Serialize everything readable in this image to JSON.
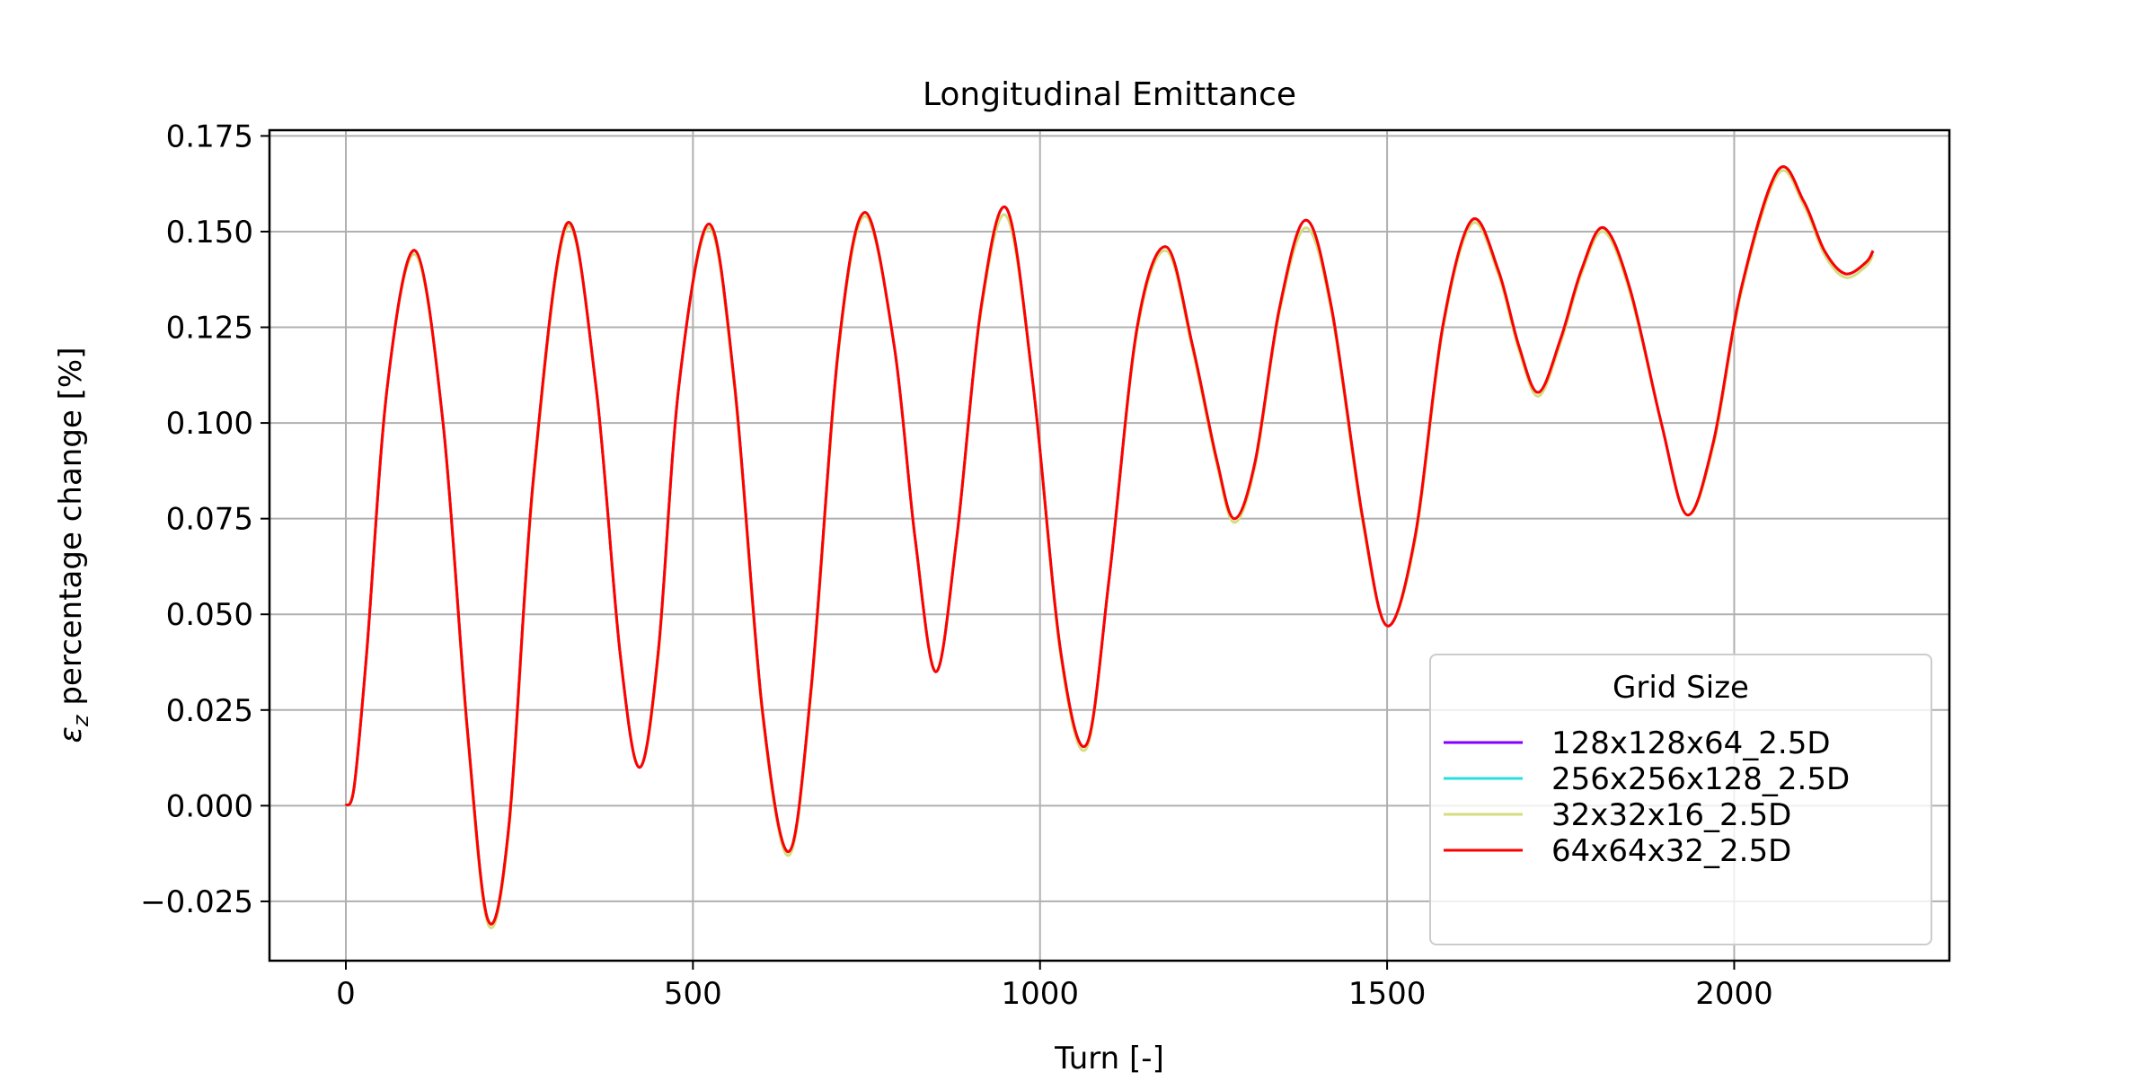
{
  "chart_data": {
    "type": "line",
    "title": "Longitudinal Emittance",
    "xlabel": "Turn [-]",
    "ylabel_symbol": "ε",
    "ylabel_subscript": "z",
    "ylabel_rest": " percentage change [%]",
    "xlim": [
      -110,
      2310
    ],
    "ylim": [
      -0.0405,
      0.1765
    ],
    "xticks": [
      0,
      500,
      1000,
      1500,
      2000
    ],
    "xtick_labels": [
      "0",
      "500",
      "1000",
      "1500",
      "2000"
    ],
    "yticks": [
      -0.025,
      0.0,
      0.025,
      0.05,
      0.075,
      0.1,
      0.125,
      0.15,
      0.175
    ],
    "ytick_labels": [
      "−0.025",
      "0.000",
      "0.025",
      "0.050",
      "0.075",
      "0.100",
      "0.125",
      "0.150",
      "0.175"
    ],
    "grid": true,
    "legend": {
      "title": "Grid Size",
      "placement": "lower-right",
      "entries": [
        "128x128x64_2.5D",
        "256x256x128_2.5D",
        "32x32x16_2.5D",
        "64x64x32_2.5D"
      ]
    },
    "series": [
      {
        "name": "128x128x64_2.5D",
        "color": "#8000ff",
        "x": [
          0,
          12,
          30,
          60,
          100,
          140,
          175,
          205,
          235,
          270,
          318,
          360,
          395,
          423,
          450,
          480,
          523,
          560,
          600,
          638,
          670,
          710,
          748,
          790,
          820,
          850,
          880,
          915,
          952,
          990,
          1030,
          1067,
          1100,
          1140,
          1182,
          1220,
          1255,
          1280,
          1310,
          1345,
          1383,
          1420,
          1465,
          1500,
          1540,
          1580,
          1622,
          1660,
          1690,
          1718,
          1750,
          1780,
          1812,
          1850,
          1895,
          1932,
          1970,
          2010,
          2063,
          2100,
          2130,
          2160,
          2190,
          2200
        ],
        "y": [
          0.0,
          0.005,
          0.04,
          0.11,
          0.145,
          0.1,
          0.02,
          -0.03,
          -0.005,
          0.085,
          0.152,
          0.11,
          0.04,
          0.01,
          0.04,
          0.11,
          0.152,
          0.11,
          0.025,
          -0.012,
          0.03,
          0.12,
          0.155,
          0.12,
          0.07,
          0.035,
          0.07,
          0.13,
          0.156,
          0.11,
          0.04,
          0.016,
          0.06,
          0.125,
          0.146,
          0.12,
          0.09,
          0.075,
          0.09,
          0.13,
          0.153,
          0.13,
          0.075,
          0.047,
          0.07,
          0.125,
          0.153,
          0.14,
          0.12,
          0.108,
          0.122,
          0.14,
          0.151,
          0.135,
          0.1,
          0.076,
          0.095,
          0.135,
          0.166,
          0.158,
          0.145,
          0.139,
          0.142,
          0.145
        ]
      },
      {
        "name": "256x256x128_2.5D",
        "color": "#2adddd",
        "x": [
          0,
          12,
          30,
          60,
          100,
          140,
          175,
          205,
          235,
          270,
          318,
          360,
          395,
          423,
          450,
          480,
          523,
          560,
          600,
          638,
          670,
          710,
          748,
          790,
          820,
          850,
          880,
          915,
          952,
          990,
          1030,
          1067,
          1100,
          1140,
          1182,
          1220,
          1255,
          1280,
          1310,
          1345,
          1383,
          1420,
          1465,
          1500,
          1540,
          1580,
          1622,
          1660,
          1690,
          1718,
          1750,
          1780,
          1812,
          1850,
          1895,
          1932,
          1970,
          2010,
          2063,
          2100,
          2130,
          2160,
          2190,
          2200
        ],
        "y": [
          0.0,
          0.005,
          0.04,
          0.11,
          0.145,
          0.1,
          0.02,
          -0.03,
          -0.005,
          0.085,
          0.152,
          0.11,
          0.04,
          0.01,
          0.04,
          0.11,
          0.152,
          0.11,
          0.025,
          -0.012,
          0.03,
          0.12,
          0.155,
          0.12,
          0.07,
          0.035,
          0.07,
          0.13,
          0.156,
          0.11,
          0.04,
          0.016,
          0.06,
          0.125,
          0.146,
          0.12,
          0.09,
          0.075,
          0.09,
          0.13,
          0.153,
          0.13,
          0.075,
          0.047,
          0.07,
          0.125,
          0.153,
          0.14,
          0.12,
          0.108,
          0.122,
          0.14,
          0.151,
          0.135,
          0.1,
          0.076,
          0.095,
          0.135,
          0.166,
          0.158,
          0.145,
          0.139,
          0.142,
          0.145
        ]
      },
      {
        "name": "32x32x16_2.5D",
        "color": "#d4dd80",
        "x": [
          0,
          12,
          30,
          60,
          100,
          140,
          175,
          205,
          235,
          270,
          318,
          360,
          395,
          423,
          450,
          480,
          523,
          560,
          600,
          638,
          670,
          710,
          748,
          790,
          820,
          850,
          880,
          915,
          952,
          990,
          1030,
          1067,
          1100,
          1140,
          1182,
          1220,
          1255,
          1280,
          1310,
          1345,
          1383,
          1420,
          1465,
          1500,
          1540,
          1580,
          1622,
          1660,
          1690,
          1718,
          1750,
          1780,
          1812,
          1850,
          1895,
          1932,
          1970,
          2010,
          2063,
          2100,
          2130,
          2160,
          2190,
          2200
        ],
        "y": [
          0.0,
          0.005,
          0.04,
          0.11,
          0.144,
          0.1,
          0.019,
          -0.031,
          -0.006,
          0.084,
          0.151,
          0.11,
          0.04,
          0.01,
          0.039,
          0.11,
          0.151,
          0.109,
          0.024,
          -0.013,
          0.029,
          0.119,
          0.154,
          0.12,
          0.07,
          0.035,
          0.07,
          0.129,
          0.154,
          0.11,
          0.039,
          0.015,
          0.06,
          0.124,
          0.145,
          0.119,
          0.089,
          0.074,
          0.089,
          0.129,
          0.151,
          0.129,
          0.074,
          0.047,
          0.069,
          0.124,
          0.152,
          0.139,
          0.119,
          0.107,
          0.121,
          0.139,
          0.15,
          0.134,
          0.1,
          0.076,
          0.094,
          0.134,
          0.165,
          0.157,
          0.144,
          0.138,
          0.141,
          0.144
        ]
      },
      {
        "name": "64x64x32_2.5D",
        "color": "#ff0000",
        "x": [
          0,
          12,
          30,
          60,
          100,
          140,
          175,
          205,
          235,
          270,
          318,
          360,
          395,
          423,
          450,
          480,
          523,
          560,
          600,
          638,
          670,
          710,
          748,
          790,
          820,
          850,
          880,
          915,
          952,
          990,
          1030,
          1067,
          1100,
          1140,
          1182,
          1220,
          1255,
          1280,
          1310,
          1345,
          1383,
          1420,
          1465,
          1500,
          1540,
          1580,
          1622,
          1660,
          1690,
          1718,
          1750,
          1780,
          1812,
          1850,
          1895,
          1932,
          1970,
          2010,
          2063,
          2100,
          2130,
          2160,
          2190,
          2200
        ],
        "y": [
          0.0,
          0.005,
          0.04,
          0.11,
          0.145,
          0.1,
          0.02,
          -0.03,
          -0.005,
          0.085,
          0.152,
          0.11,
          0.04,
          0.01,
          0.04,
          0.11,
          0.152,
          0.11,
          0.025,
          -0.012,
          0.03,
          0.12,
          0.155,
          0.12,
          0.07,
          0.035,
          0.07,
          0.13,
          0.156,
          0.11,
          0.04,
          0.016,
          0.06,
          0.125,
          0.146,
          0.12,
          0.09,
          0.075,
          0.09,
          0.13,
          0.153,
          0.13,
          0.075,
          0.047,
          0.07,
          0.125,
          0.153,
          0.14,
          0.12,
          0.108,
          0.122,
          0.14,
          0.151,
          0.135,
          0.1,
          0.076,
          0.095,
          0.135,
          0.166,
          0.158,
          0.145,
          0.139,
          0.142,
          0.145
        ]
      }
    ]
  }
}
